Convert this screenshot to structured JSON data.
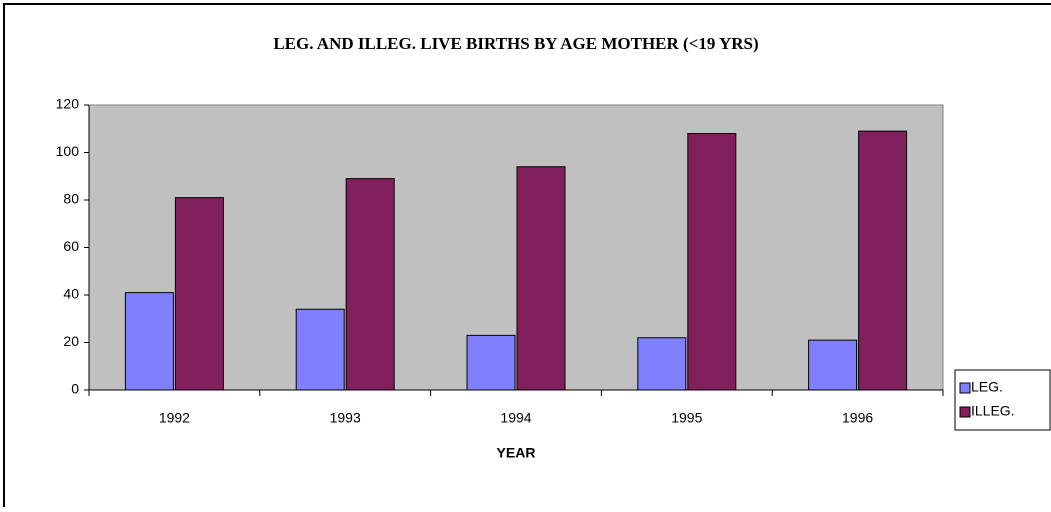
{
  "chart_data": {
    "type": "bar",
    "title": "LEG. AND ILLEG. LIVE BIRTHS BY AGE MOTHER (<19 YRS)",
    "x_label": "YEAR",
    "categories": [
      "1992",
      "1993",
      "1994",
      "1995",
      "1996"
    ],
    "series": [
      {
        "name": "LEG.",
        "color": "#8080ff",
        "values": [
          41,
          34,
          23,
          22,
          21
        ]
      },
      {
        "name": "ILLEG.",
        "color": "#82205e",
        "values": [
          81,
          89,
          94,
          108,
          109
        ]
      }
    ],
    "ylim": [
      0,
      120
    ],
    "yticks": [
      0,
      20,
      40,
      60,
      80,
      100,
      120
    ],
    "grid": false,
    "legend": "right"
  }
}
